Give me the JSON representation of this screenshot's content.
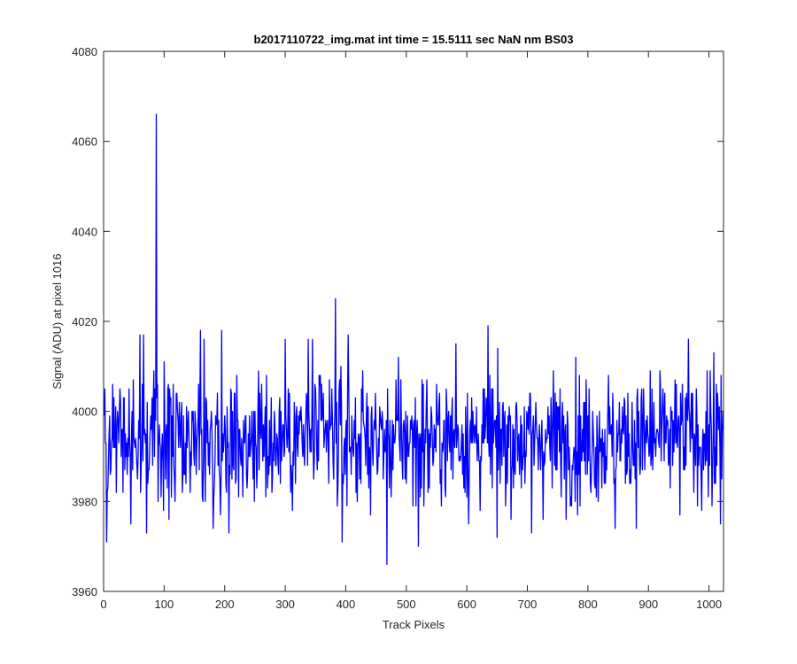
{
  "chart_data": {
    "type": "line",
    "title": "b2017110722_img.mat int time = 15.5111 sec  NaN nm BS03",
    "xlabel": "Track Pixels",
    "ylabel": "Signal (ADU) at pixel 1016",
    "xlim": [
      0,
      1024
    ],
    "ylim": [
      3960,
      4080
    ],
    "xticks": [
      0,
      100,
      200,
      300,
      400,
      500,
      600,
      700,
      800,
      900,
      1000
    ],
    "yticks": [
      3960,
      3980,
      4000,
      4020,
      4040,
      4060,
      4080
    ],
    "grid": false,
    "legend": "none",
    "series": [
      {
        "color": "#0000ff",
        "x_start": 1,
        "x_step": 1,
        "n_points": 1024,
        "noise_mean": 3994,
        "noise_spread": 7,
        "notable_points": [
          {
            "x": 1,
            "y": 3999
          },
          {
            "x": 5,
            "y": 3971
          },
          {
            "x": 60,
            "y": 4017
          },
          {
            "x": 66,
            "y": 4017
          },
          {
            "x": 71,
            "y": 3973
          },
          {
            "x": 87,
            "y": 4066
          },
          {
            "x": 90,
            "y": 3980
          },
          {
            "x": 100,
            "y": 4011
          },
          {
            "x": 160,
            "y": 4018
          },
          {
            "x": 166,
            "y": 4016
          },
          {
            "x": 168,
            "y": 3980
          },
          {
            "x": 193,
            "y": 3977
          },
          {
            "x": 195,
            "y": 4018
          },
          {
            "x": 300,
            "y": 4016
          },
          {
            "x": 338,
            "y": 4016
          },
          {
            "x": 345,
            "y": 4016
          },
          {
            "x": 383,
            "y": 4025
          },
          {
            "x": 394,
            "y": 3971
          },
          {
            "x": 404,
            "y": 4017
          },
          {
            "x": 468,
            "y": 3966
          },
          {
            "x": 520,
            "y": 3970
          },
          {
            "x": 582,
            "y": 4015
          },
          {
            "x": 635,
            "y": 4019
          },
          {
            "x": 650,
            "y": 3972
          },
          {
            "x": 707,
            "y": 3973
          },
          {
            "x": 845,
            "y": 3974
          },
          {
            "x": 966,
            "y": 4016
          },
          {
            "x": 1005,
            "y": 3979
          },
          {
            "x": 1008,
            "y": 4013
          },
          {
            "x": 1019,
            "y": 3975
          }
        ]
      }
    ]
  }
}
